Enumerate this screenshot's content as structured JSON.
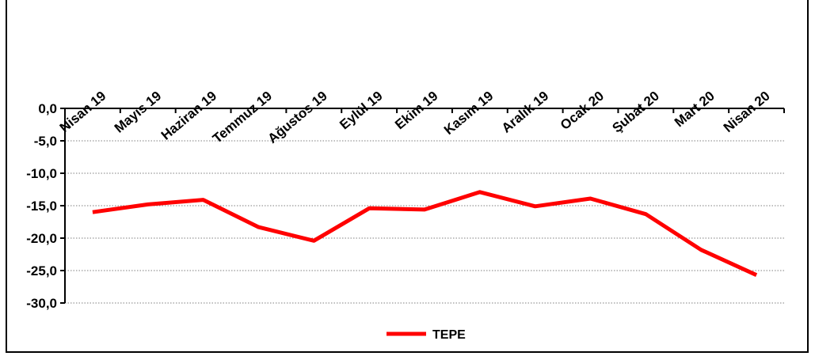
{
  "chart_data": {
    "type": "line",
    "title": "",
    "xlabel": "",
    "ylabel": "",
    "categories": [
      "Nisan 19",
      "Mayıs 19",
      "Haziran 19",
      "Temmuz 19",
      "Ağustos 19",
      "Eylül 19",
      "Ekim 19",
      "Kasım 19",
      "Aralık 19",
      "Ocak 20",
      "Şubat 20",
      "Mart 20",
      "Nisan 20"
    ],
    "y_ticks": [
      "0,0",
      "-5,0",
      "-10,0",
      "-15,0",
      "-20,0",
      "-25,0",
      "-30,0"
    ],
    "ylim": [
      -30,
      0
    ],
    "grid": true,
    "x_axis_position": "top",
    "legend_position": "bottom-center",
    "series": [
      {
        "name": "TEPE",
        "color": "#ff0000",
        "values": [
          -16.0,
          -14.8,
          -14.1,
          -18.3,
          -20.4,
          -15.4,
          -15.6,
          -12.9,
          -15.1,
          -13.9,
          -16.3,
          -21.8,
          -25.7
        ]
      }
    ]
  }
}
